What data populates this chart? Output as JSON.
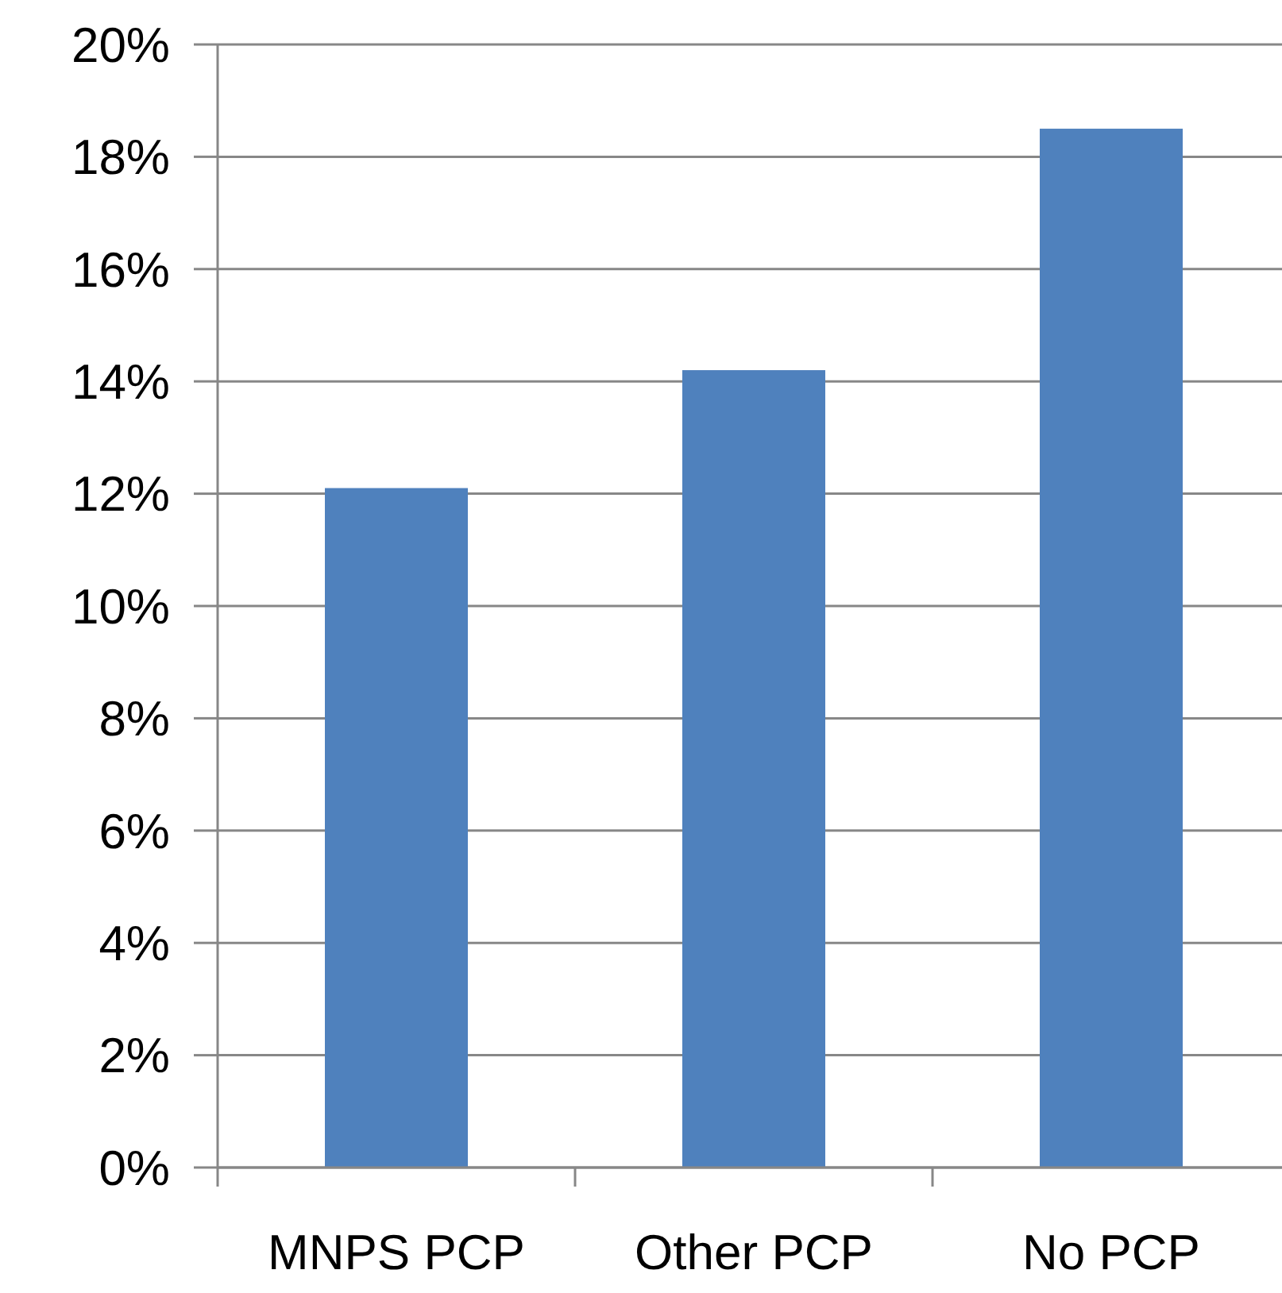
{
  "chart_data": {
    "type": "bar",
    "categories": [
      "MNPS PCP",
      "Other PCP",
      "No PCP"
    ],
    "values": [
      12.1,
      14.2,
      18.5
    ],
    "color": "#4f81bd",
    "ylim": [
      0,
      20
    ],
    "yticks": [
      {
        "value": 0,
        "label": "0%"
      },
      {
        "value": 2,
        "label": "2%"
      },
      {
        "value": 4,
        "label": "4%"
      },
      {
        "value": 6,
        "label": "6%"
      },
      {
        "value": 8,
        "label": "8%"
      },
      {
        "value": 10,
        "label": "10%"
      },
      {
        "value": 12,
        "label": "12%"
      },
      {
        "value": 14,
        "label": "14%"
      },
      {
        "value": 16,
        "label": "16%"
      },
      {
        "value": 18,
        "label": "18%"
      },
      {
        "value": 20,
        "label": "20%"
      }
    ],
    "grid": "y"
  }
}
